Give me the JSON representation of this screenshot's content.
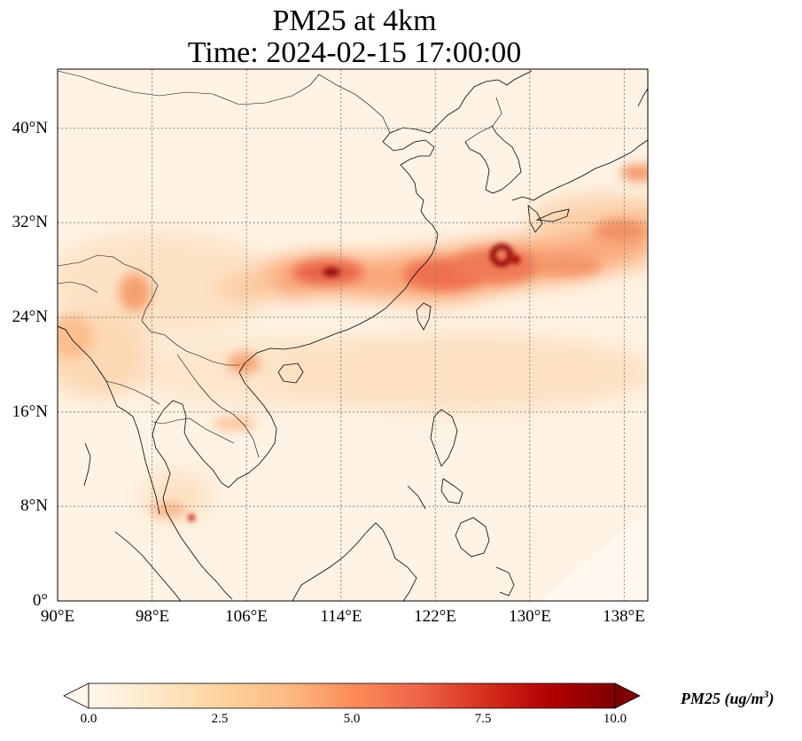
{
  "title": {
    "line1": "PM25 at 4km",
    "line2": "Time: 2024-02-15 17:00:00"
  },
  "map": {
    "type": "gridded-concentration",
    "variable": "PM25",
    "lon_range": [
      90,
      140
    ],
    "lat_range": [
      0,
      45
    ],
    "lat_ticks": [
      "0°",
      "8°N",
      "16°N",
      "24°N",
      "32°N",
      "40°N"
    ],
    "lon_ticks": [
      "90°E",
      "98°E",
      "106°E",
      "114°E",
      "122°E",
      "130°E",
      "138°E"
    ],
    "gridlines": "dotted",
    "colormap": "OrRd",
    "colormap_stops": [
      "#fff7ec",
      "#fee8c8",
      "#fdd49e",
      "#fdbb84",
      "#fc8d59",
      "#ef6548",
      "#d7301f",
      "#b30000",
      "#7f0000"
    ]
  },
  "colorbar": {
    "ticks": [
      "0.0",
      "2.5",
      "5.0",
      "7.5",
      "10.0"
    ],
    "range": [
      0,
      10
    ],
    "extend": "both",
    "label_text": "PM25 (ug/m",
    "label_sup": "3",
    "label_close": ")"
  },
  "chart_data": {
    "type": "heatmap",
    "title": "PM25 at 4km\nTime: 2024-02-15 17:00:00",
    "xlabel": "",
    "ylabel": "",
    "xlim": [
      90,
      140
    ],
    "ylim": [
      0,
      45
    ],
    "zlim": [
      0,
      10
    ],
    "plumes": [
      {
        "lon": 114,
        "lat": 28,
        "value": 9.5
      },
      {
        "lon": 127,
        "lat": 29.3,
        "value": 10
      },
      {
        "lon": 101.5,
        "lat": 7,
        "value": 8
      },
      {
        "lon": 120,
        "lat": 27,
        "value": 6.5
      },
      {
        "lon": 135,
        "lat": 31,
        "value": 5
      },
      {
        "lon": 97.5,
        "lat": 26.5,
        "value": 4.5
      },
      {
        "lon": 106,
        "lat": 20,
        "value": 4
      }
    ]
  }
}
